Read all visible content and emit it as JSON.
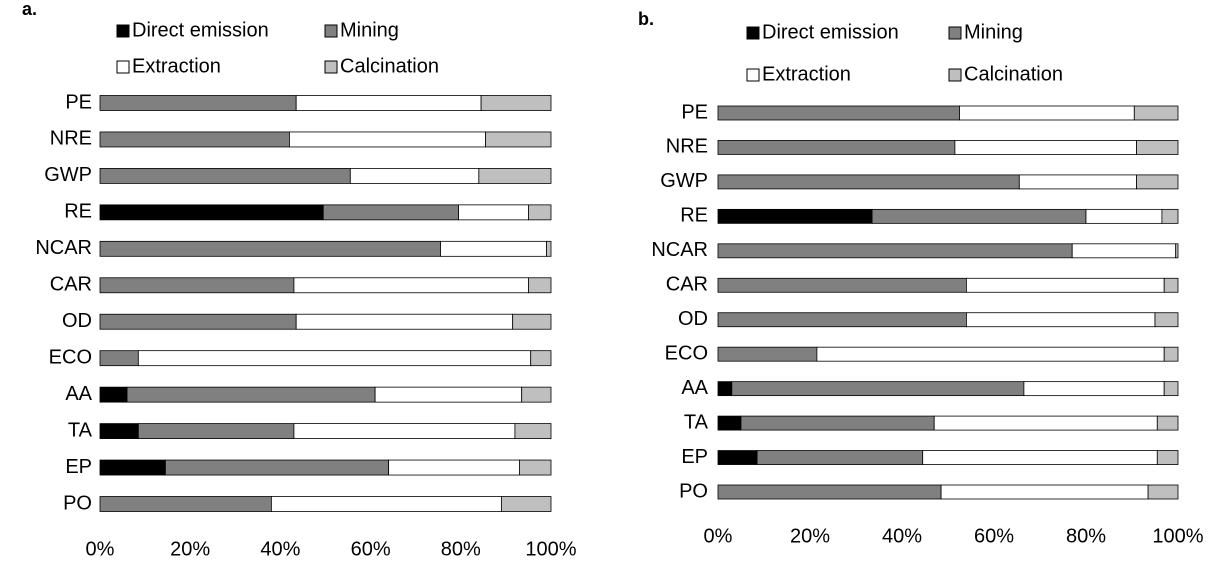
{
  "chart_data": [
    {
      "type": "bar",
      "orientation": "horizontal",
      "stacked": true,
      "title": "a.",
      "categories": [
        "PE",
        "NRE",
        "GWP",
        "RE",
        "NCAR",
        "CAR",
        "OD",
        "ECO",
        "AA",
        "TA",
        "EP",
        "PO"
      ],
      "series": [
        {
          "name": "Direct emission",
          "color": "#000000",
          "values": [
            0,
            0,
            0,
            49.5,
            0,
            0,
            0,
            0,
            6,
            8.5,
            14.5,
            0
          ]
        },
        {
          "name": "Mining",
          "color": "#808080",
          "values": [
            43.5,
            42,
            55.5,
            30,
            75.5,
            43,
            43.5,
            8.5,
            55,
            34.5,
            49.5,
            38
          ]
        },
        {
          "name": "Extraction",
          "color": "#ffffff",
          "values": [
            41,
            43.5,
            28.5,
            15.5,
            23.5,
            52,
            48,
            87,
            32.5,
            49,
            29,
            51
          ]
        },
        {
          "name": "Calcination",
          "color": "#bfbfbf",
          "values": [
            15.5,
            14.5,
            16,
            5,
            1,
            5,
            8.5,
            4.5,
            6.5,
            8,
            7,
            11
          ]
        }
      ],
      "xlim": [
        0,
        100
      ],
      "xticks": [
        {
          "value": 0,
          "label": "0%"
        },
        {
          "value": 20,
          "label": "20%"
        },
        {
          "value": 40,
          "label": "40%"
        },
        {
          "value": 60,
          "label": "60%"
        },
        {
          "value": 80,
          "label": "80%"
        },
        {
          "value": 100,
          "label": "100%"
        }
      ],
      "grid": false
    },
    {
      "type": "bar",
      "orientation": "horizontal",
      "stacked": true,
      "title": "b.",
      "categories": [
        "PE",
        "NRE",
        "GWP",
        "RE",
        "NCAR",
        "CAR",
        "OD",
        "ECO",
        "AA",
        "TA",
        "EP",
        "PO"
      ],
      "series": [
        {
          "name": "Direct emission",
          "color": "#000000",
          "values": [
            0,
            0,
            0,
            33.5,
            0,
            0,
            0,
            0,
            3,
            5,
            8.5,
            0
          ]
        },
        {
          "name": "Mining",
          "color": "#808080",
          "values": [
            52.5,
            51.5,
            65.5,
            46.5,
            77,
            54,
            54,
            21.5,
            63.5,
            42,
            36,
            48.5
          ]
        },
        {
          "name": "Extraction",
          "color": "#ffffff",
          "values": [
            38,
            39.5,
            25.5,
            16.5,
            22.5,
            43,
            41,
            75.5,
            30.5,
            48.5,
            51,
            45
          ]
        },
        {
          "name": "Calcination",
          "color": "#bfbfbf",
          "values": [
            9.5,
            9,
            9,
            3.5,
            0.5,
            3,
            5,
            3,
            3,
            4.5,
            4.5,
            6.5
          ]
        }
      ],
      "xlim": [
        0,
        100
      ],
      "xticks": [
        {
          "value": 0,
          "label": "0%"
        },
        {
          "value": 20,
          "label": "20%"
        },
        {
          "value": 40,
          "label": "40%"
        },
        {
          "value": 60,
          "label": "60%"
        },
        {
          "value": 80,
          "label": "80%"
        },
        {
          "value": 100,
          "label": "100%"
        }
      ],
      "grid": false
    }
  ]
}
